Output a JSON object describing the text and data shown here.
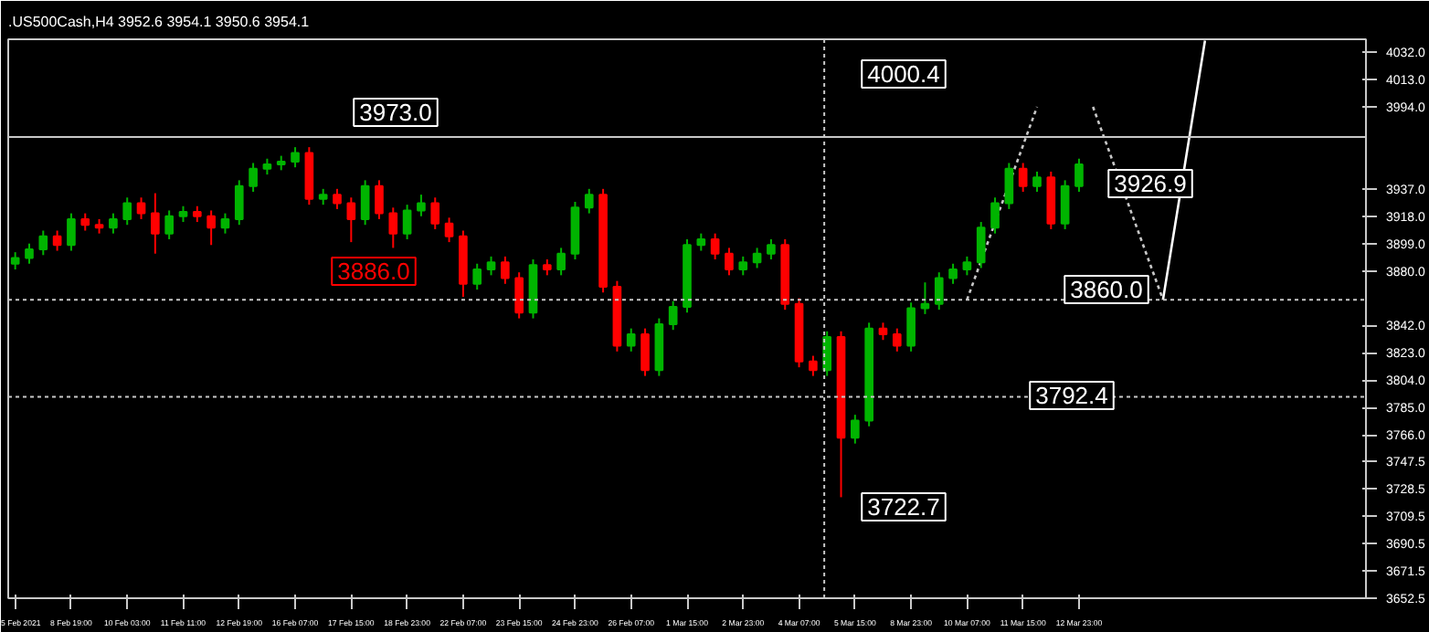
{
  "chart_data": {
    "type": "candlestick",
    "title": ".US500Cash,H4  3952.6 3954.1 3950.6 3954.1",
    "categories": [
      "5 Feb 2021",
      null,
      null,
      null,
      "8 Feb 19:00",
      null,
      null,
      null,
      "10 Feb 03:00",
      null,
      null,
      null,
      "11 Feb 11:00",
      null,
      null,
      null,
      "12 Feb 19:00",
      null,
      null,
      null,
      "16 Feb 07:00",
      null,
      null,
      null,
      "17 Feb 15:00",
      null,
      null,
      null,
      "18 Feb 23:00",
      null,
      null,
      null,
      "22 Feb 07:00",
      null,
      null,
      null,
      "23 Feb 15:00",
      null,
      null,
      null,
      "24 Feb 23:00",
      null,
      null,
      null,
      "26 Feb 07:00",
      null,
      null,
      null,
      "1 Mar 15:00",
      null,
      null,
      null,
      "2 Mar 23:00",
      null,
      null,
      null,
      "4 Mar 07:00",
      null,
      null,
      null,
      "5 Mar 15:00",
      null,
      null,
      null,
      "8 Mar 23:00",
      null,
      null,
      null,
      "10 Mar 07:00",
      null,
      null,
      null,
      "11 Mar 15:00",
      null,
      null,
      null,
      "12 Mar 23:00",
      null,
      null,
      null,
      null,
      null,
      null,
      null,
      null,
      null,
      null,
      null,
      null,
      null,
      null,
      null,
      null,
      null,
      null,
      null,
      null
    ],
    "ohlc": [
      [
        3885,
        3893,
        3881,
        3889
      ],
      [
        3889,
        3899,
        3885,
        3895
      ],
      [
        3895,
        3908,
        3891,
        3904
      ],
      [
        3904,
        3908,
        3894,
        3898
      ],
      [
        3898,
        3920,
        3894,
        3916
      ],
      [
        3916,
        3920,
        3908,
        3912
      ],
      [
        3912,
        3916,
        3906,
        3910
      ],
      [
        3910,
        3920,
        3906,
        3916
      ],
      [
        3916,
        3931,
        3912,
        3927
      ],
      [
        3927,
        3931,
        3916,
        3920
      ],
      [
        3920,
        3934,
        3892,
        3906
      ],
      [
        3906,
        3922,
        3902,
        3918
      ],
      [
        3918,
        3925,
        3914,
        3921
      ],
      [
        3921,
        3925,
        3914,
        3918
      ],
      [
        3918,
        3922,
        3898,
        3910
      ],
      [
        3910,
        3920,
        3906,
        3916
      ],
      [
        3916,
        3943,
        3912,
        3939
      ],
      [
        3939,
        3955,
        3935,
        3951
      ],
      [
        3951,
        3958,
        3947,
        3954
      ],
      [
        3954,
        3960,
        3950,
        3956
      ],
      [
        3956,
        3966,
        3952,
        3962
      ],
      [
        3962,
        3966,
        3926,
        3930
      ],
      [
        3930,
        3937,
        3926,
        3933
      ],
      [
        3933,
        3937,
        3923,
        3927
      ],
      [
        3927,
        3931,
        3900,
        3916
      ],
      [
        3916,
        3943,
        3912,
        3939
      ],
      [
        3939,
        3943,
        3916,
        3920
      ],
      [
        3920,
        3924,
        3896,
        3906
      ],
      [
        3906,
        3926,
        3902,
        3922
      ],
      [
        3922,
        3933,
        3918,
        3927
      ],
      [
        3927,
        3931,
        3909,
        3913
      ],
      [
        3913,
        3917,
        3900,
        3904
      ],
      [
        3904,
        3908,
        3862,
        3871
      ],
      [
        3871,
        3885,
        3867,
        3881
      ],
      [
        3881,
        3890,
        3877,
        3886
      ],
      [
        3886,
        3890,
        3871,
        3875
      ],
      [
        3875,
        3879,
        3847,
        3851
      ],
      [
        3851,
        3888,
        3847,
        3884
      ],
      [
        3884,
        3888,
        3877,
        3881
      ],
      [
        3881,
        3896,
        3877,
        3892
      ],
      [
        3892,
        3928,
        3888,
        3924
      ],
      [
        3924,
        3937,
        3920,
        3933
      ],
      [
        3933,
        3937,
        3865,
        3869
      ],
      [
        3869,
        3873,
        3824,
        3828
      ],
      [
        3828,
        3840,
        3824,
        3836
      ],
      [
        3836,
        3840,
        3807,
        3811
      ],
      [
        3811,
        3847,
        3807,
        3843
      ],
      [
        3843,
        3859,
        3839,
        3855
      ],
      [
        3855,
        3902,
        3851,
        3898
      ],
      [
        3898,
        3906,
        3894,
        3902
      ],
      [
        3902,
        3906,
        3888,
        3892
      ],
      [
        3892,
        3896,
        3877,
        3881
      ],
      [
        3881,
        3890,
        3877,
        3886
      ],
      [
        3886,
        3896,
        3882,
        3892
      ],
      [
        3892,
        3902,
        3888,
        3898
      ],
      [
        3898,
        3902,
        3853,
        3857
      ],
      [
        3857,
        3861,
        3813,
        3817
      ],
      [
        3817,
        3821,
        3807,
        3811
      ],
      [
        3811,
        3838,
        3807,
        3834
      ],
      [
        3834,
        3838,
        3722.7,
        3764
      ],
      [
        3764,
        3780,
        3760,
        3776
      ],
      [
        3776,
        3844,
        3772,
        3840
      ],
      [
        3840,
        3844,
        3832,
        3836
      ],
      [
        3836,
        3840,
        3824,
        3828
      ],
      [
        3828,
        3858,
        3824,
        3854
      ],
      [
        3854,
        3872,
        3850,
        3857
      ],
      [
        3857,
        3879,
        3853,
        3875
      ],
      [
        3875,
        3885,
        3871,
        3881
      ],
      [
        3881,
        3890,
        3877,
        3886
      ],
      [
        3886,
        3914,
        3882,
        3910
      ],
      [
        3910,
        3931,
        3906,
        3927
      ],
      [
        3927,
        3955,
        3923,
        3951
      ],
      [
        3951,
        3955,
        3935,
        3939
      ],
      [
        3939,
        3949,
        3935,
        3945
      ],
      [
        3945,
        3949,
        3909,
        3913
      ],
      [
        3913,
        3943,
        3909,
        3939
      ],
      [
        3939,
        3958,
        3935,
        3954.1
      ],
      null,
      null,
      null,
      null,
      null,
      null,
      null,
      null,
      null,
      null,
      null,
      null,
      null,
      null,
      null,
      null,
      null,
      null,
      null,
      null
    ],
    "series": [
      {
        "type": "line",
        "color": "#c8c8c8",
        "line_style": "dotted",
        "values": [
          null,
          null,
          null,
          null,
          null,
          null,
          null,
          null,
          null,
          null,
          null,
          null,
          null,
          null,
          null,
          null,
          null,
          null,
          null,
          null,
          null,
          null,
          null,
          null,
          null,
          null,
          null,
          null,
          null,
          null,
          null,
          null,
          null,
          null,
          null,
          null,
          null,
          null,
          null,
          null,
          null,
          null,
          null,
          null,
          null,
          null,
          null,
          null,
          null,
          null,
          null,
          null,
          null,
          null,
          null,
          null,
          null,
          null,
          null,
          null,
          null,
          null,
          null,
          null,
          null,
          null,
          null,
          null,
          3860,
          null,
          null,
          null,
          null,
          3994,
          null,
          null,
          null,
          null,
          null,
          null,
          null,
          null,
          null,
          null,
          null,
          null,
          null,
          null,
          null,
          null,
          null,
          null,
          null,
          null,
          null,
          null,
          null
        ]
      },
      {
        "type": "line",
        "color": "#c8c8c8",
        "line_style": "dotted",
        "values": [
          null,
          null,
          null,
          null,
          null,
          null,
          null,
          null,
          null,
          null,
          null,
          null,
          null,
          null,
          null,
          null,
          null,
          null,
          null,
          null,
          null,
          null,
          null,
          null,
          null,
          null,
          null,
          null,
          null,
          null,
          null,
          null,
          null,
          null,
          null,
          null,
          null,
          null,
          null,
          null,
          null,
          null,
          null,
          null,
          null,
          null,
          null,
          null,
          null,
          null,
          null,
          null,
          null,
          null,
          null,
          null,
          null,
          null,
          null,
          null,
          null,
          null,
          null,
          null,
          null,
          null,
          null,
          null,
          null,
          null,
          null,
          null,
          null,
          null,
          null,
          null,
          null,
          3994,
          null,
          null,
          null,
          null,
          3860,
          null,
          null,
          null,
          null,
          null,
          null,
          null,
          null,
          null,
          null,
          null,
          null,
          null,
          null
        ]
      },
      {
        "type": "line",
        "color": "#ffffff",
        "line_style": "solid",
        "values": [
          null,
          null,
          null,
          null,
          null,
          null,
          null,
          null,
          null,
          null,
          null,
          null,
          null,
          null,
          null,
          null,
          null,
          null,
          null,
          null,
          null,
          null,
          null,
          null,
          null,
          null,
          null,
          null,
          null,
          null,
          null,
          null,
          null,
          null,
          null,
          null,
          null,
          null,
          null,
          null,
          null,
          null,
          null,
          null,
          null,
          null,
          null,
          null,
          null,
          null,
          null,
          null,
          null,
          null,
          null,
          null,
          null,
          null,
          null,
          null,
          null,
          null,
          null,
          null,
          null,
          null,
          null,
          null,
          null,
          null,
          null,
          null,
          null,
          null,
          null,
          null,
          null,
          null,
          null,
          null,
          null,
          null,
          3860,
          null,
          null,
          4040,
          null,
          null,
          null,
          null,
          null,
          null,
          null,
          null,
          null,
          null,
          null
        ]
      }
    ],
    "ylim": [
      3652.5,
      4041
    ],
    "yticks": [
      {
        "value": 4032,
        "label": "4032.0"
      },
      {
        "value": 4013,
        "label": "4013.0"
      },
      {
        "value": 3994,
        "label": "3994.0"
      },
      {
        "value": 3937,
        "label": "3937.0"
      },
      {
        "value": 3918,
        "label": "3918.0"
      },
      {
        "value": 3899,
        "label": "3899.0"
      },
      {
        "value": 3880,
        "label": "3880.0"
      },
      {
        "value": 3842,
        "label": "3842.0"
      },
      {
        "value": 3823,
        "label": "3823.0"
      },
      {
        "value": 3804,
        "label": "3804.0"
      },
      {
        "value": 3785,
        "label": "3785.0"
      },
      {
        "value": 3766,
        "label": "3766.0"
      },
      {
        "value": 3747.5,
        "label": "3747.5"
      },
      {
        "value": 3728.5,
        "label": "3728.5"
      },
      {
        "value": 3709.5,
        "label": "3709.5"
      },
      {
        "value": 3690.5,
        "label": "3690.5"
      },
      {
        "value": 3671.5,
        "label": "3671.5"
      },
      {
        "value": 3652.5,
        "label": "3652.5"
      }
    ],
    "ref_lines": [
      {
        "axis": "y",
        "value": 3973.0,
        "color": "#c8c8c8",
        "line_style": "solid"
      },
      {
        "axis": "y",
        "value": 3860.0,
        "color": "#c8c8c8",
        "line_style": "dotted"
      },
      {
        "axis": "y",
        "value": 3792.4,
        "color": "#c8c8c8",
        "line_style": "dotted"
      }
    ],
    "annotations": [
      "3973.0",
      "3886.0",
      "4000.4",
      "3722.7",
      "3926.9",
      "3860.0",
      "3792.4"
    ],
    "grid": false
  }
}
